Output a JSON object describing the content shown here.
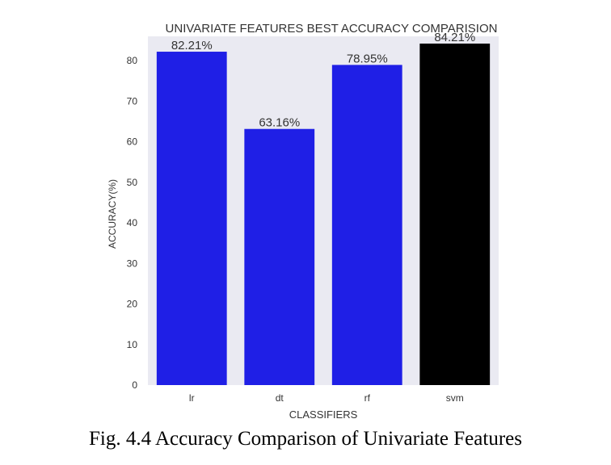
{
  "chart_data": {
    "type": "bar",
    "title": "UNIVARIATE FEATURES BEST ACCURACY COMPARISION",
    "xlabel": "CLASSIFIERS",
    "ylabel": "ACCURACY(%)",
    "categories": [
      "lr",
      "dt",
      "rf",
      "svm"
    ],
    "values": [
      82.21,
      63.16,
      78.95,
      84.21
    ],
    "value_labels": [
      "82.21%",
      "63.16%",
      "78.95%",
      "84.21%"
    ],
    "bar_colors": [
      "#1f1fe6",
      "#1f1fe6",
      "#1f1fe6",
      "#000000"
    ],
    "yticks": [
      0,
      10,
      20,
      30,
      40,
      50,
      60,
      70,
      80
    ],
    "ylim": [
      0,
      86
    ],
    "grid": false,
    "plot_background": "#eaeaf2"
  },
  "caption": "Fig. 4.4 Accuracy Comparison of Univariate Features"
}
